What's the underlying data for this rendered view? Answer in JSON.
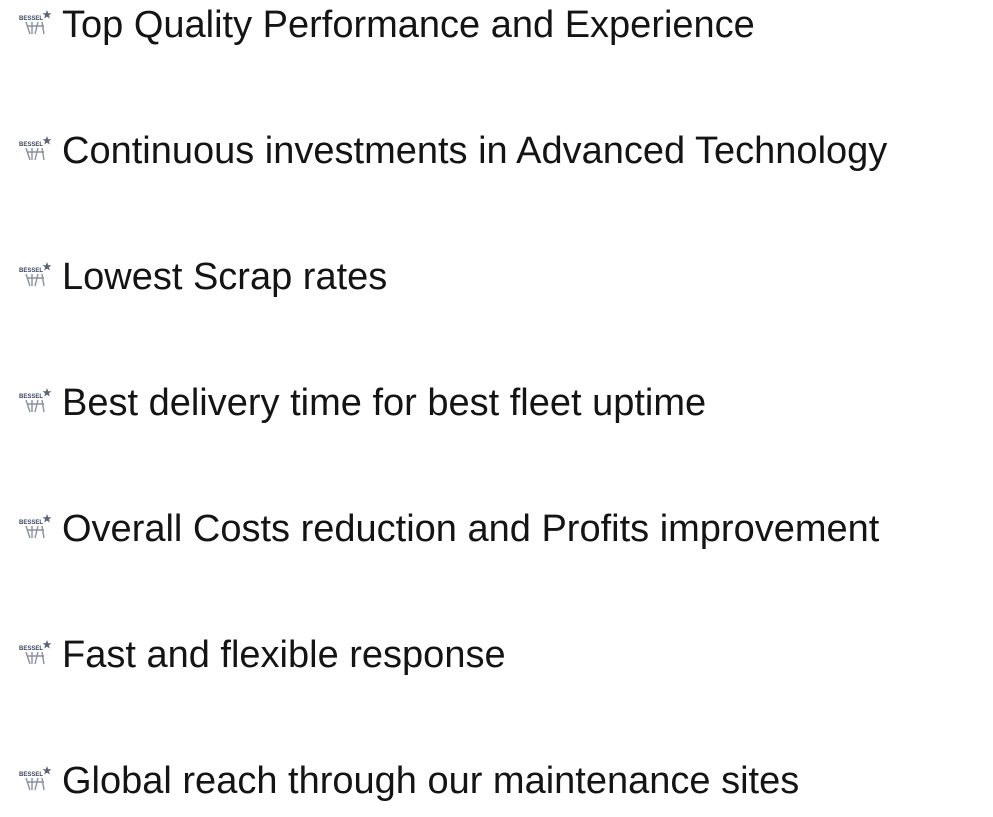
{
  "bullet_label": "BESSEL",
  "items": [
    "Top Quality Performance and Experience",
    "Continuous investments in Advanced Technology",
    "Lowest Scrap rates",
    "Best delivery time for best fleet uptime",
    "Overall Costs reduction and Profits improvement",
    "Fast and flexible response",
    "Global reach through our maintenance sites"
  ]
}
